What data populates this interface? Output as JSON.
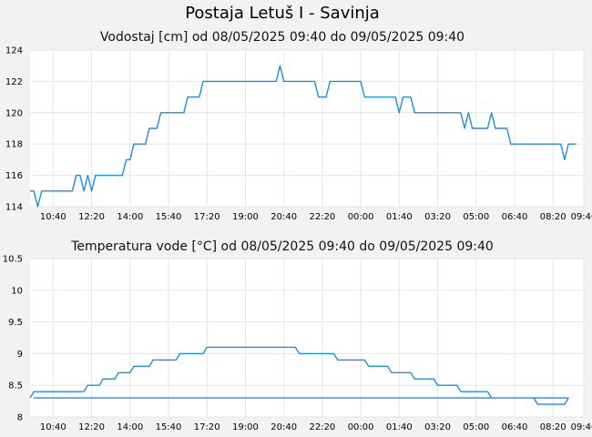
{
  "page": {
    "title": "Postaja Letuš I - Savinja"
  },
  "chart_data": [
    {
      "type": "line",
      "title": "Vodostaj [cm] od 08/05/2025 09:40 do 09/05/2025 09:40",
      "xlabel": "",
      "ylabel": "",
      "xlim": [
        "08/05/2025 09:40",
        "09/05/2025 09:40"
      ],
      "ylim": [
        114,
        124
      ],
      "grid": true,
      "color": "#1e90d6",
      "x_ticks": [
        "10:40",
        "12:20",
        "14:00",
        "15:40",
        "17:20",
        "19:00",
        "20:40",
        "22:20",
        "00:00",
        "01:40",
        "03:20",
        "05:00",
        "06:40",
        "08:20",
        "09:40"
      ],
      "y_ticks": [
        "114",
        "116",
        "118",
        "120",
        "122",
        "124"
      ],
      "series": [
        {
          "name": "",
          "points": [
            [
              "09:40",
              115
            ],
            [
              "09:50",
              115
            ],
            [
              "10:00",
              114
            ],
            [
              "10:10",
              115
            ],
            [
              "10:40",
              115
            ],
            [
              "11:00",
              115
            ],
            [
              "11:30",
              115
            ],
            [
              "11:40",
              116
            ],
            [
              "11:50",
              116
            ],
            [
              "12:00",
              115
            ],
            [
              "12:10",
              116
            ],
            [
              "12:20",
              115
            ],
            [
              "12:30",
              116
            ],
            [
              "13:00",
              116
            ],
            [
              "13:30",
              116
            ],
            [
              "13:40",
              116
            ],
            [
              "13:50",
              117
            ],
            [
              "14:00",
              117
            ],
            [
              "14:10",
              118
            ],
            [
              "14:30",
              118
            ],
            [
              "14:40",
              118
            ],
            [
              "14:50",
              119
            ],
            [
              "15:10",
              119
            ],
            [
              "15:20",
              120
            ],
            [
              "15:40",
              120
            ],
            [
              "16:10",
              120
            ],
            [
              "16:20",
              120
            ],
            [
              "16:30",
              121
            ],
            [
              "17:00",
              121
            ],
            [
              "17:10",
              122
            ],
            [
              "17:20",
              122
            ],
            [
              "20:20",
              122
            ],
            [
              "20:30",
              123
            ],
            [
              "20:40",
              122
            ],
            [
              "21:00",
              122
            ],
            [
              "22:00",
              122
            ],
            [
              "22:10",
              121
            ],
            [
              "22:30",
              121
            ],
            [
              "22:40",
              122
            ],
            [
              "23:00",
              122
            ],
            [
              "00:00",
              122
            ],
            [
              "00:10",
              121
            ],
            [
              "01:00",
              121
            ],
            [
              "01:30",
              121
            ],
            [
              "01:40",
              120
            ],
            [
              "01:50",
              121
            ],
            [
              "02:10",
              121
            ],
            [
              "02:20",
              120
            ],
            [
              "03:20",
              120
            ],
            [
              "04:20",
              120
            ],
            [
              "04:30",
              119
            ],
            [
              "04:40",
              120
            ],
            [
              "04:50",
              119
            ],
            [
              "05:00",
              119
            ],
            [
              "05:30",
              119
            ],
            [
              "05:40",
              120
            ],
            [
              "05:50",
              119
            ],
            [
              "06:20",
              119
            ],
            [
              "06:30",
              118
            ],
            [
              "07:00",
              118
            ],
            [
              "08:20",
              118
            ],
            [
              "08:40",
              118
            ],
            [
              "08:50",
              117
            ],
            [
              "09:00",
              118
            ],
            [
              "09:20",
              118
            ]
          ]
        }
      ]
    },
    {
      "type": "line",
      "title": "Temperatura vode [°C] od 08/05/2025 09:40 do 09/05/2025 09:40",
      "xlabel": "",
      "ylabel": "",
      "xlim": [
        "08/05/2025 09:40",
        "09/05/2025 09:40"
      ],
      "ylim": [
        8,
        10.5
      ],
      "grid": true,
      "color": "#1e90d6",
      "x_ticks": [
        "10:40",
        "12:20",
        "14:00",
        "15:40",
        "17:20",
        "19:00",
        "20:40",
        "22:20",
        "00:00",
        "01:40",
        "03:20",
        "05:00",
        "06:40",
        "08:20",
        "09:40"
      ],
      "y_ticks": [
        "8",
        "8.5",
        "9",
        "9.5",
        "10",
        "10.5"
      ],
      "series": [
        {
          "name": "",
          "points": [
            [
              "09:40",
              8.3
            ],
            [
              "09:50",
              8.4
            ],
            [
              "11:00",
              8.4
            ],
            [
              "12:00",
              8.4
            ],
            [
              "12:10",
              8.5
            ],
            [
              "12:40",
              8.5
            ],
            [
              "12:50",
              8.6
            ],
            [
              "13:20",
              8.6
            ],
            [
              "13:30",
              8.7
            ],
            [
              "14:00",
              8.7
            ],
            [
              "14:10",
              8.8
            ],
            [
              "14:50",
              8.8
            ],
            [
              "15:00",
              8.9
            ],
            [
              "16:00",
              8.9
            ],
            [
              "16:10",
              9.0
            ],
            [
              "17:10",
              9.0
            ],
            [
              "17:20",
              9.1
            ],
            [
              "21:10",
              9.1
            ],
            [
              "21:20",
              9.0
            ],
            [
              "22:50",
              9.0
            ],
            [
              "23:00",
              8.9
            ],
            [
              "00:10",
              8.9
            ],
            [
              "00:20",
              8.8
            ],
            [
              "01:10",
              8.8
            ],
            [
              "01:20",
              8.7
            ],
            [
              "02:10",
              8.7
            ],
            [
              "02:20",
              8.6
            ],
            [
              "03:10",
              8.6
            ],
            [
              "03:20",
              8.5
            ],
            [
              "04:10",
              8.5
            ],
            [
              "04:20",
              8.4
            ],
            [
              "05:30",
              8.4
            ],
            [
              "05:40",
              8.3
            ],
            [
              "07:30",
              8.3
            ],
            [
              "07:40",
              8.2
            ],
            [
              "08:50",
              8.2
            ],
            [
              "09:00",
              8.3
            ],
            [
              "09:50",
              8.3
            ]
          ]
        }
      ]
    }
  ]
}
